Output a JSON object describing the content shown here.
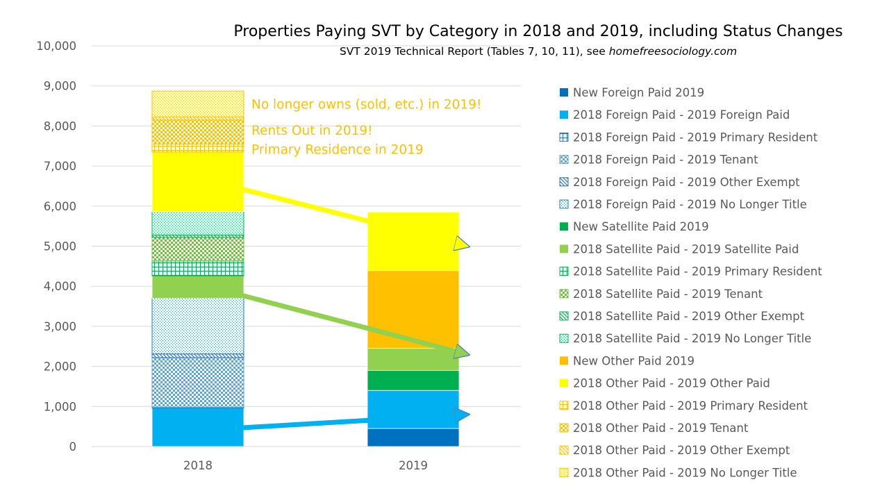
{
  "chart_data": {
    "type": "bar",
    "stacked": true,
    "title": "Properties Paying SVT by Category in 2018 and 2019, including Status Changes",
    "subtitle_prefix": "SVT 2019 Technical Report (Tables 7, 10, 11), see ",
    "subtitle_site": "homefreesociology.com",
    "categories": [
      "2018",
      "2019"
    ],
    "ylim": [
      0,
      10000
    ],
    "yticks": [
      0,
      1000,
      2000,
      3000,
      4000,
      5000,
      6000,
      7000,
      8000,
      9000,
      10000
    ],
    "ytick_labels": [
      "0",
      "1,000",
      "2,000",
      "3,000",
      "4,000",
      "5,000",
      "6,000",
      "7,000",
      "8,000",
      "9,000",
      "10,000"
    ],
    "grid": true,
    "legend_position": "right",
    "series": [
      {
        "name": "New Foreign Paid 2019",
        "color": "#0070C0",
        "pattern": "solid",
        "values": [
          0,
          450
        ]
      },
      {
        "name": "2018 Foreign Paid - 2019 Foreign Paid",
        "color": "#00B0F0",
        "pattern": "solid",
        "values": [
          960,
          950
        ]
      },
      {
        "name": "2018 Foreign Paid - 2019 Primary Resident",
        "color": "#2E75B6",
        "pattern": "grid",
        "values": [
          20,
          0
        ]
      },
      {
        "name": "2018 Foreign Paid - 2019 Tenant",
        "color": "#5BA3E0",
        "pattern": "checker",
        "values": [
          1240,
          0
        ]
      },
      {
        "name": "2018 Foreign Paid - 2019 Other Exempt",
        "color": "#2E75B6",
        "pattern": "diag",
        "values": [
          90,
          0
        ]
      },
      {
        "name": "2018 Foreign Paid - 2019 No Longer Title",
        "color": "#2E75B6",
        "pattern": "dots",
        "values": [
          1390,
          0
        ]
      },
      {
        "name": "New Satellite Paid 2019",
        "color": "#00B050",
        "pattern": "solid",
        "values": [
          0,
          500
        ]
      },
      {
        "name": "2018 Satellite Paid - 2019 Satellite Paid",
        "color": "#92D050",
        "pattern": "solid",
        "values": [
          560,
          550
        ]
      },
      {
        "name": "2018 Satellite Paid - 2019 Primary Resident",
        "color": "#00B050",
        "pattern": "grid",
        "values": [
          370,
          0
        ]
      },
      {
        "name": "2018 Satellite Paid - 2019 Tenant",
        "color": "#70C040",
        "pattern": "checker",
        "values": [
          590,
          0
        ]
      },
      {
        "name": "2018 Satellite Paid - 2019 Other Exempt",
        "color": "#00B050",
        "pattern": "diag",
        "values": [
          60,
          0
        ]
      },
      {
        "name": "2018 Satellite Paid - 2019 No Longer Title",
        "color": "#00B050",
        "pattern": "dots",
        "values": [
          580,
          0
        ]
      },
      {
        "name": "New Other Paid 2019",
        "color": "#FFC000",
        "pattern": "solid",
        "values": [
          0,
          1940
        ]
      },
      {
        "name": "2018 Other Paid - 2019 Other Paid",
        "color": "#FFFF00",
        "pattern": "solid",
        "values": [
          1490,
          1460
        ]
      },
      {
        "name": "2018 Other Paid - 2019 Primary Resident",
        "color": "#FFC000",
        "pattern": "grid",
        "values": [
          200,
          0
        ]
      },
      {
        "name": "2018 Other Paid - 2019 Tenant",
        "color": "#FFC000",
        "pattern": "checker",
        "values": [
          600,
          0
        ]
      },
      {
        "name": "2018 Other Paid - 2019 Other Exempt",
        "color": "#FFC000",
        "pattern": "diag",
        "values": [
          80,
          0
        ]
      },
      {
        "name": "2018 Other Paid - 2019 No Longer Title",
        "color": "#FFC000",
        "pattern": "dots",
        "values": [
          640,
          0
        ]
      }
    ],
    "annotations": [
      {
        "text": "No longer owns (sold, etc.) in 2019!",
        "y_value": 8550
      },
      {
        "text": "Rents Out in 2019!",
        "y_value": 7900
      },
      {
        "text": "Primary Residence in 2019",
        "y_value": 7430
      }
    ],
    "arrows": [
      {
        "color": "#FFFF00",
        "from": [
          0.65,
          6500
        ],
        "to": [
          1.75,
          5000
        ]
      },
      {
        "color": "#92D050",
        "from": [
          0.65,
          3850
        ],
        "to": [
          1.75,
          2300
        ]
      },
      {
        "color": "#00B0F0",
        "from": [
          0.65,
          450
        ],
        "to": [
          1.75,
          800
        ]
      }
    ]
  }
}
